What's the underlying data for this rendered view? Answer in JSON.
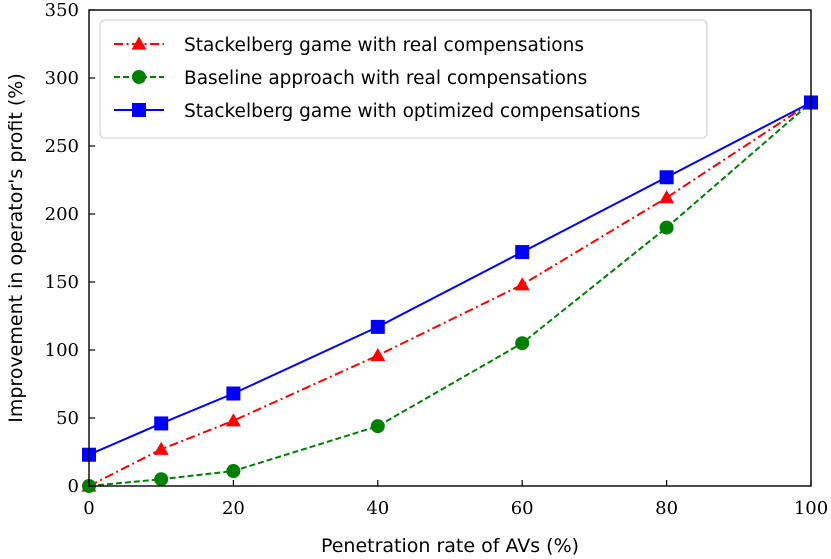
{
  "chart_data": {
    "type": "line",
    "title": "",
    "xlabel": "Penetration rate of AVs (%)",
    "ylabel": "Improvement in operator's profit (%)",
    "xlim": [
      0,
      100
    ],
    "ylim": [
      0,
      350
    ],
    "xticks": [
      0,
      20,
      40,
      60,
      80,
      100
    ],
    "yticks": [
      0,
      50,
      100,
      150,
      200,
      250,
      300,
      350
    ],
    "grid": false,
    "legend_position": "top-left",
    "series": [
      {
        "name": "Stackelberg game with real compensations",
        "color": "#ff0000",
        "line_style": "dash-dot",
        "marker": "triangle",
        "x": [
          0,
          10,
          20,
          40,
          60,
          80,
          100
        ],
        "y": [
          0,
          27,
          48,
          96,
          148,
          212,
          282
        ]
      },
      {
        "name": "Baseline approach with real compensations",
        "color": "#008000",
        "line_style": "dashed",
        "marker": "circle",
        "x": [
          0,
          10,
          20,
          40,
          60,
          80,
          100
        ],
        "y": [
          0,
          5,
          11,
          44,
          105,
          190,
          282
        ]
      },
      {
        "name": "Stackelberg game with optimized compensations",
        "color": "#0000ff",
        "line_style": "solid",
        "marker": "square",
        "x": [
          0,
          10,
          20,
          40,
          60,
          80,
          100
        ],
        "y": [
          23,
          46,
          68,
          117,
          172,
          227,
          282
        ]
      }
    ]
  }
}
